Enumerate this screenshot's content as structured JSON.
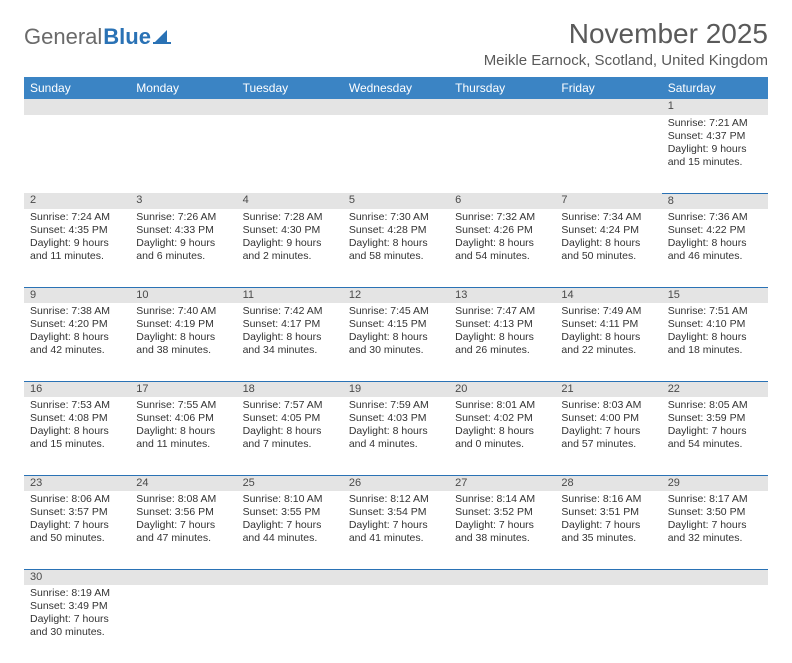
{
  "logo": {
    "part1": "General",
    "part2": "Blue"
  },
  "title": "November 2025",
  "location": "Meikle Earnock, Scotland, United Kingdom",
  "colors": {
    "header_bg": "#3b84c4",
    "header_text": "#ffffff",
    "daynum_bg": "#e4e4e4",
    "cell_border": "#2a72b5",
    "text": "#333333",
    "title_text": "#5a5a5a",
    "logo_gray": "#6a6a6a",
    "logo_blue": "#2a72b5"
  },
  "day_headers": [
    "Sunday",
    "Monday",
    "Tuesday",
    "Wednesday",
    "Thursday",
    "Friday",
    "Saturday"
  ],
  "weeks": [
    [
      null,
      null,
      null,
      null,
      null,
      null,
      {
        "n": "1",
        "sunrise": "Sunrise: 7:21 AM",
        "sunset": "Sunset: 4:37 PM",
        "daylight": "Daylight: 9 hours and 15 minutes."
      }
    ],
    [
      {
        "n": "2",
        "sunrise": "Sunrise: 7:24 AM",
        "sunset": "Sunset: 4:35 PM",
        "daylight": "Daylight: 9 hours and 11 minutes."
      },
      {
        "n": "3",
        "sunrise": "Sunrise: 7:26 AM",
        "sunset": "Sunset: 4:33 PM",
        "daylight": "Daylight: 9 hours and 6 minutes."
      },
      {
        "n": "4",
        "sunrise": "Sunrise: 7:28 AM",
        "sunset": "Sunset: 4:30 PM",
        "daylight": "Daylight: 9 hours and 2 minutes."
      },
      {
        "n": "5",
        "sunrise": "Sunrise: 7:30 AM",
        "sunset": "Sunset: 4:28 PM",
        "daylight": "Daylight: 8 hours and 58 minutes."
      },
      {
        "n": "6",
        "sunrise": "Sunrise: 7:32 AM",
        "sunset": "Sunset: 4:26 PM",
        "daylight": "Daylight: 8 hours and 54 minutes."
      },
      {
        "n": "7",
        "sunrise": "Sunrise: 7:34 AM",
        "sunset": "Sunset: 4:24 PM",
        "daylight": "Daylight: 8 hours and 50 minutes."
      },
      {
        "n": "8",
        "sunrise": "Sunrise: 7:36 AM",
        "sunset": "Sunset: 4:22 PM",
        "daylight": "Daylight: 8 hours and 46 minutes."
      }
    ],
    [
      {
        "n": "9",
        "sunrise": "Sunrise: 7:38 AM",
        "sunset": "Sunset: 4:20 PM",
        "daylight": "Daylight: 8 hours and 42 minutes."
      },
      {
        "n": "10",
        "sunrise": "Sunrise: 7:40 AM",
        "sunset": "Sunset: 4:19 PM",
        "daylight": "Daylight: 8 hours and 38 minutes."
      },
      {
        "n": "11",
        "sunrise": "Sunrise: 7:42 AM",
        "sunset": "Sunset: 4:17 PM",
        "daylight": "Daylight: 8 hours and 34 minutes."
      },
      {
        "n": "12",
        "sunrise": "Sunrise: 7:45 AM",
        "sunset": "Sunset: 4:15 PM",
        "daylight": "Daylight: 8 hours and 30 minutes."
      },
      {
        "n": "13",
        "sunrise": "Sunrise: 7:47 AM",
        "sunset": "Sunset: 4:13 PM",
        "daylight": "Daylight: 8 hours and 26 minutes."
      },
      {
        "n": "14",
        "sunrise": "Sunrise: 7:49 AM",
        "sunset": "Sunset: 4:11 PM",
        "daylight": "Daylight: 8 hours and 22 minutes."
      },
      {
        "n": "15",
        "sunrise": "Sunrise: 7:51 AM",
        "sunset": "Sunset: 4:10 PM",
        "daylight": "Daylight: 8 hours and 18 minutes."
      }
    ],
    [
      {
        "n": "16",
        "sunrise": "Sunrise: 7:53 AM",
        "sunset": "Sunset: 4:08 PM",
        "daylight": "Daylight: 8 hours and 15 minutes."
      },
      {
        "n": "17",
        "sunrise": "Sunrise: 7:55 AM",
        "sunset": "Sunset: 4:06 PM",
        "daylight": "Daylight: 8 hours and 11 minutes."
      },
      {
        "n": "18",
        "sunrise": "Sunrise: 7:57 AM",
        "sunset": "Sunset: 4:05 PM",
        "daylight": "Daylight: 8 hours and 7 minutes."
      },
      {
        "n": "19",
        "sunrise": "Sunrise: 7:59 AM",
        "sunset": "Sunset: 4:03 PM",
        "daylight": "Daylight: 8 hours and 4 minutes."
      },
      {
        "n": "20",
        "sunrise": "Sunrise: 8:01 AM",
        "sunset": "Sunset: 4:02 PM",
        "daylight": "Daylight: 8 hours and 0 minutes."
      },
      {
        "n": "21",
        "sunrise": "Sunrise: 8:03 AM",
        "sunset": "Sunset: 4:00 PM",
        "daylight": "Daylight: 7 hours and 57 minutes."
      },
      {
        "n": "22",
        "sunrise": "Sunrise: 8:05 AM",
        "sunset": "Sunset: 3:59 PM",
        "daylight": "Daylight: 7 hours and 54 minutes."
      }
    ],
    [
      {
        "n": "23",
        "sunrise": "Sunrise: 8:06 AM",
        "sunset": "Sunset: 3:57 PM",
        "daylight": "Daylight: 7 hours and 50 minutes."
      },
      {
        "n": "24",
        "sunrise": "Sunrise: 8:08 AM",
        "sunset": "Sunset: 3:56 PM",
        "daylight": "Daylight: 7 hours and 47 minutes."
      },
      {
        "n": "25",
        "sunrise": "Sunrise: 8:10 AM",
        "sunset": "Sunset: 3:55 PM",
        "daylight": "Daylight: 7 hours and 44 minutes."
      },
      {
        "n": "26",
        "sunrise": "Sunrise: 8:12 AM",
        "sunset": "Sunset: 3:54 PM",
        "daylight": "Daylight: 7 hours and 41 minutes."
      },
      {
        "n": "27",
        "sunrise": "Sunrise: 8:14 AM",
        "sunset": "Sunset: 3:52 PM",
        "daylight": "Daylight: 7 hours and 38 minutes."
      },
      {
        "n": "28",
        "sunrise": "Sunrise: 8:16 AM",
        "sunset": "Sunset: 3:51 PM",
        "daylight": "Daylight: 7 hours and 35 minutes."
      },
      {
        "n": "29",
        "sunrise": "Sunrise: 8:17 AM",
        "sunset": "Sunset: 3:50 PM",
        "daylight": "Daylight: 7 hours and 32 minutes."
      }
    ],
    [
      {
        "n": "30",
        "sunrise": "Sunrise: 8:19 AM",
        "sunset": "Sunset: 3:49 PM",
        "daylight": "Daylight: 7 hours and 30 minutes."
      },
      null,
      null,
      null,
      null,
      null,
      null
    ]
  ]
}
